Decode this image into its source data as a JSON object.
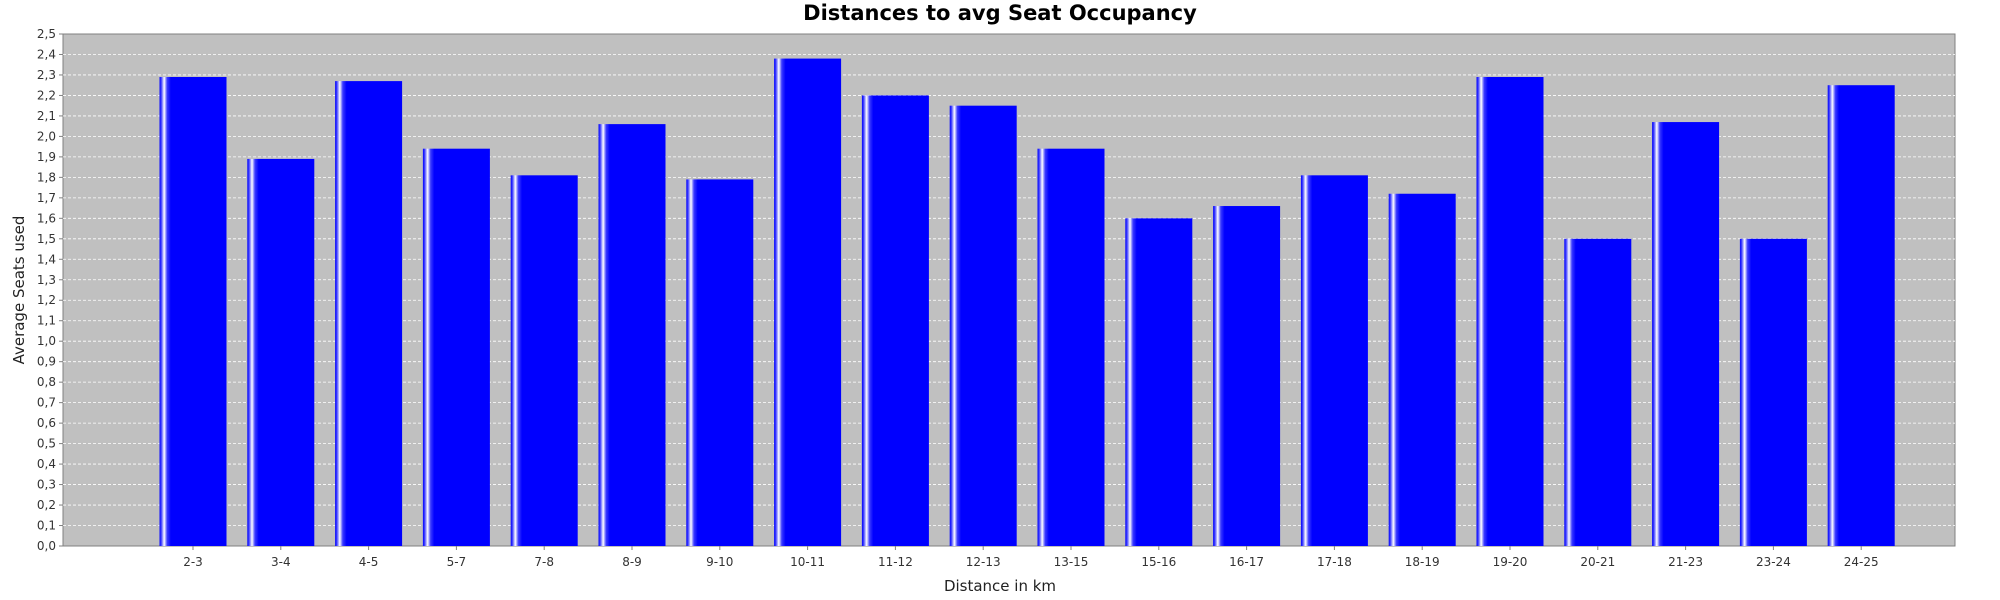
{
  "chart_data": {
    "type": "bar",
    "title": "Distances to avg Seat Occupancy",
    "xlabel": "Distance in km",
    "ylabel": "Average Seats used",
    "categories": [
      "2-3",
      "3-4",
      "4-5",
      "5-7",
      "7-8",
      "8-9",
      "9-10",
      "10-11",
      "11-12",
      "12-13",
      "13-15",
      "15-16",
      "16-17",
      "17-18",
      "18-19",
      "19-20",
      "20-21",
      "21-23",
      "23-24",
      "24-25"
    ],
    "values": [
      2.29,
      1.89,
      2.27,
      1.94,
      1.81,
      2.06,
      1.79,
      2.38,
      2.2,
      2.15,
      1.94,
      1.6,
      1.66,
      1.81,
      1.72,
      2.29,
      1.5,
      2.07,
      1.5,
      2.25
    ],
    "ylim": [
      0,
      2.5
    ],
    "ytick_step": 0.1,
    "ytick_labels": [
      "0,0",
      "0,1",
      "0,2",
      "0,3",
      "0,4",
      "0,5",
      "0,6",
      "0,7",
      "0,8",
      "0,9",
      "1,0",
      "1,1",
      "1,2",
      "1,3",
      "1,4",
      "1,5",
      "1,6",
      "1,7",
      "1,8",
      "1,9",
      "2,0",
      "2,1",
      "2,2",
      "2,3",
      "2,4",
      "2,5"
    ],
    "grid": true,
    "legend": "none",
    "colors": {
      "bar": "#0000ff",
      "bar_highlight": "#ffffff",
      "plot_background": "#c0c0c0",
      "gridline": "#ffffff"
    }
  }
}
